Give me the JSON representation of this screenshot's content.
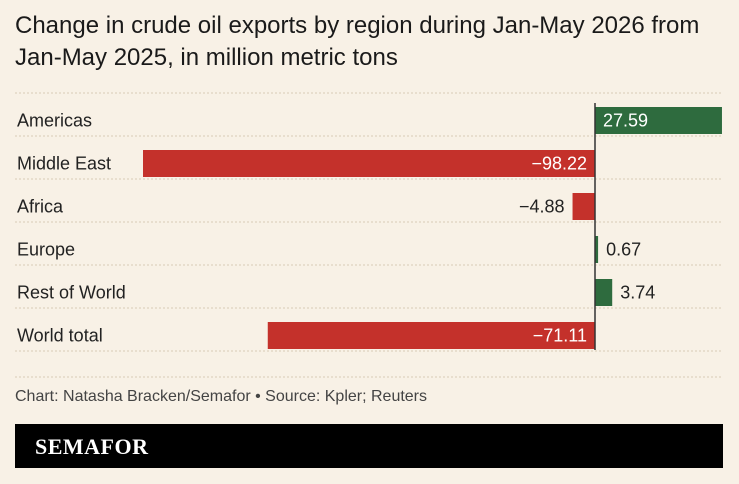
{
  "title": "Change in crude oil exports by region during Jan-May 2026 from Jan-May 2025, in million metric tons",
  "source": "Chart: Natasha Bracken/Semafor • Source: Kpler; Reuters",
  "logo": "SEMAFOR",
  "colors": {
    "positive": "#2e6b3e",
    "negative": "#c4312b",
    "background": "#f8f1e6",
    "divider": "#d8ccb6"
  },
  "chart_data": {
    "type": "bar",
    "orientation": "horizontal",
    "title": "Change in crude oil exports by region during Jan-May 2026 from Jan-May 2025, in million metric tons",
    "categories": [
      "Americas",
      "Middle East",
      "Africa",
      "Europe",
      "Rest of World",
      "World total"
    ],
    "values": [
      27.59,
      -98.22,
      -4.88,
      0.67,
      3.74,
      -71.11
    ],
    "labels": [
      "27.59",
      "−98.22",
      "−4.88",
      "0.67",
      "3.74",
      "−71.11"
    ],
    "xlim": [
      -98.22,
      27.59
    ],
    "grid": false,
    "legend": "none"
  }
}
